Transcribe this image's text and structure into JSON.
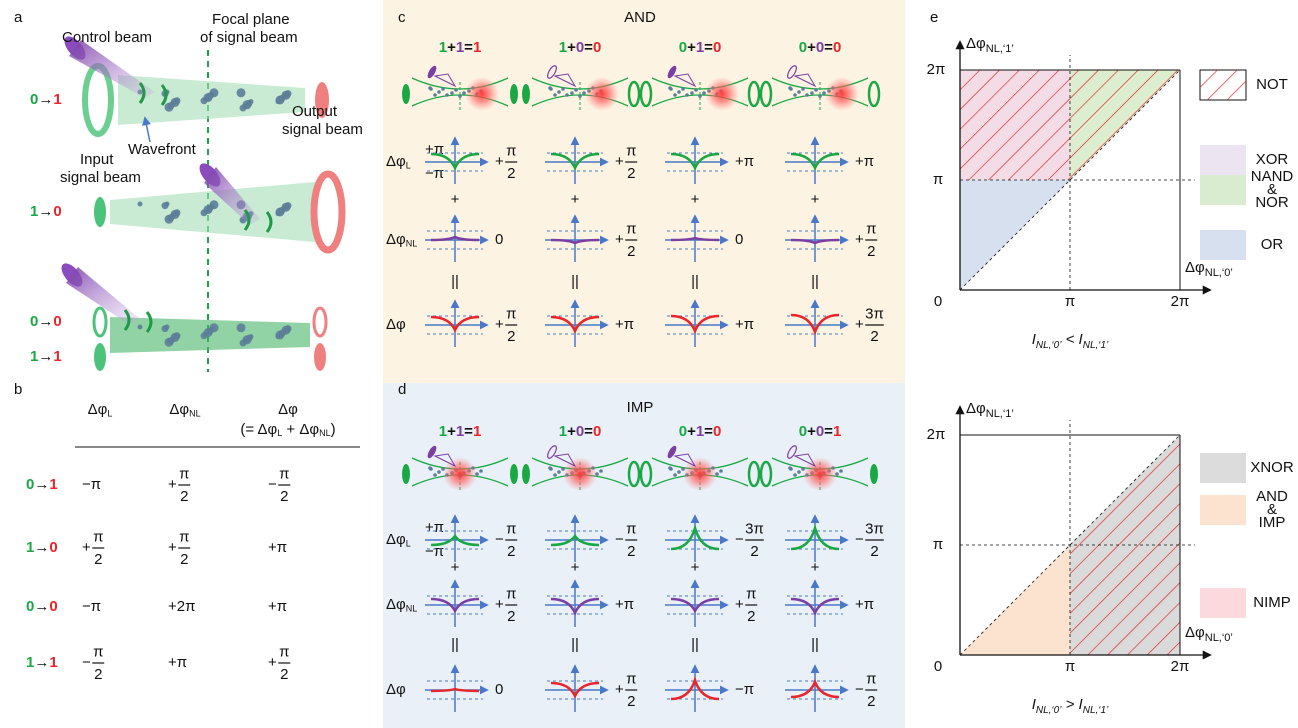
{
  "panel_a": {
    "label": "a",
    "control_beam": "Control beam",
    "focal_plane": [
      "Focal plane",
      "of signal beam"
    ],
    "input_beam": [
      "Input",
      "signal beam"
    ],
    "wavefront": "Wavefront",
    "output_beam": [
      "Output",
      "signal beam"
    ],
    "transitions": [
      [
        "0",
        "→",
        "1"
      ],
      [
        "1",
        "→",
        "0"
      ],
      [
        "0",
        "→",
        "0"
      ],
      [
        "1",
        "→",
        "1"
      ]
    ]
  },
  "panel_b": {
    "label": "b",
    "headers": [
      [
        {
          "t": "Δφ"
        },
        {
          "sub": "L"
        }
      ],
      [
        {
          "t": "Δφ"
        },
        {
          "sub": "NL"
        }
      ],
      [
        {
          "t": "Δφ"
        }
      ]
    ],
    "header_note": [
      {
        "t": "(= Δφ"
      },
      {
        "sub": "L"
      },
      {
        "t": " + Δφ"
      },
      {
        "sub": "NL"
      },
      {
        "t": ")"
      }
    ],
    "rows": [
      {
        "transition": [
          "0",
          "→",
          "1"
        ],
        "cells": [
          "−π",
          {
            "sign": "+",
            "num": "π",
            "den": "2"
          },
          {
            "sign": "−",
            "num": "π",
            "den": "2"
          }
        ]
      },
      {
        "transition": [
          "1",
          "→",
          "0"
        ],
        "cells": [
          {
            "sign": "+",
            "num": "π",
            "den": "2"
          },
          {
            "sign": "+",
            "num": "π",
            "den": "2"
          },
          "+π"
        ]
      },
      {
        "transition": [
          "0",
          "→",
          "0"
        ],
        "cells": [
          "−π",
          "+2π",
          "+π"
        ]
      },
      {
        "transition": [
          "1",
          "→",
          "1"
        ],
        "cells": [
          {
            "sign": "−",
            "num": "π",
            "den": "2"
          },
          "+π",
          {
            "sign": "+",
            "num": "π",
            "den": "2"
          }
        ]
      }
    ]
  },
  "panels_cd": [
    {
      "label": "c",
      "title": "AND",
      "row_labels": [
        [
          {
            "t": "Δφ"
          },
          {
            "sub": "L"
          }
        ],
        [
          {
            "t": "Δφ"
          },
          {
            "sub": "NL"
          }
        ],
        [
          {
            "t": "Δφ"
          }
        ]
      ],
      "range_labels": [
        "+π",
        "−π"
      ],
      "plus": "+",
      "equals": "||",
      "columns": [
        {
          "equation": [
            "1",
            "+",
            "1",
            "=",
            "1"
          ],
          "values": [
            {
              "sign": "+",
              "num": "π",
              "den": "2"
            },
            "0",
            {
              "sign": "+",
              "num": "π",
              "den": "2"
            }
          ]
        },
        {
          "equation": [
            "1",
            "+",
            "0",
            "=",
            "0"
          ],
          "values": [
            {
              "sign": "+",
              "num": "π",
              "den": "2"
            },
            {
              "sign": "+",
              "num": "π",
              "den": "2"
            },
            "+π"
          ]
        },
        {
          "equation": [
            "0",
            "+",
            "1",
            "=",
            "0"
          ],
          "values": [
            "+π",
            "0",
            "+π"
          ]
        },
        {
          "equation": [
            "0",
            "+",
            "0",
            "=",
            "0"
          ],
          "values": [
            "+π",
            {
              "sign": "+",
              "num": "π",
              "den": "2"
            },
            {
              "sign": "+",
              "num": "3π",
              "den": "2"
            }
          ]
        }
      ]
    },
    {
      "label": "d",
      "title": "IMP",
      "row_labels": [
        [
          {
            "t": "Δφ"
          },
          {
            "sub": "L"
          }
        ],
        [
          {
            "t": "Δφ"
          },
          {
            "sub": "NL"
          }
        ],
        [
          {
            "t": "Δφ"
          }
        ]
      ],
      "range_labels": [
        "+π",
        "−π"
      ],
      "plus": "+",
      "equals": "||",
      "columns": [
        {
          "equation": [
            "1",
            "+",
            "1",
            "=",
            "1"
          ],
          "values": [
            {
              "sign": "−",
              "num": "π",
              "den": "2"
            },
            {
              "sign": "+",
              "num": "π",
              "den": "2"
            },
            "0"
          ]
        },
        {
          "equation": [
            "1",
            "+",
            "0",
            "=",
            "0"
          ],
          "values": [
            {
              "sign": "−",
              "num": "π",
              "den": "2"
            },
            "+π",
            {
              "sign": "+",
              "num": "π",
              "den": "2"
            }
          ]
        },
        {
          "equation": [
            "0",
            "+",
            "1",
            "=",
            "0"
          ],
          "values": [
            {
              "sign": "−",
              "num": "3π",
              "den": "2"
            },
            {
              "sign": "+",
              "num": "π",
              "den": "2"
            },
            "−π"
          ]
        },
        {
          "equation": [
            "0",
            "+",
            "0",
            "=",
            "1"
          ],
          "values": [
            {
              "sign": "−",
              "num": "3π",
              "den": "2"
            },
            "+π",
            {
              "sign": "−",
              "num": "π",
              "den": "2"
            }
          ]
        }
      ]
    }
  ],
  "panel_e": {
    "label": "e",
    "plots": [
      {
        "y_label": [
          {
            "t": "Δφ"
          },
          {
            "sub": "NL,‘1’"
          }
        ],
        "x_label": [
          {
            "t": "Δφ"
          },
          {
            "sub": "NL,‘0’"
          }
        ],
        "yticks": [
          "2π",
          "π"
        ],
        "xticks": [
          "π",
          "2π"
        ],
        "origin": "0",
        "caption": [
          {
            "t": "I"
          },
          {
            "sub": "NL,‘0’"
          },
          {
            "t": " < I"
          },
          {
            "sub": "NL,‘1’"
          }
        ],
        "legend": [
          [
            "NOT"
          ],
          [
            "XOR"
          ],
          [
            "NAND",
            "&",
            "NOR"
          ],
          [
            "OR"
          ]
        ]
      },
      {
        "y_label": [
          {
            "t": "Δφ"
          },
          {
            "sub": "NL,‘1’"
          }
        ],
        "x_label": [
          {
            "t": "Δφ"
          },
          {
            "sub": "NL,‘0’"
          }
        ],
        "yticks": [
          "2π",
          "π"
        ],
        "xticks": [
          "π",
          "2π"
        ],
        "origin": "0",
        "caption": [
          {
            "t": "I"
          },
          {
            "sub": "NL,‘0’"
          },
          {
            "t": " > I"
          },
          {
            "sub": "NL,‘1’"
          }
        ],
        "legend": [
          [
            "XNOR"
          ],
          [
            "AND",
            "&",
            "IMP"
          ],
          [
            "NIMP"
          ]
        ]
      }
    ]
  }
}
